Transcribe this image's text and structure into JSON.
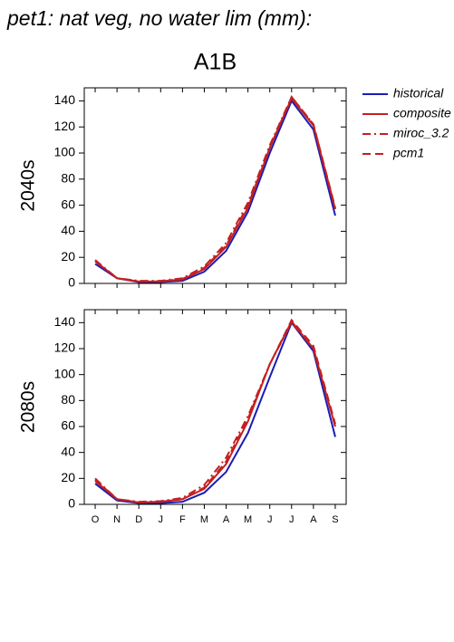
{
  "title": "pet1: nat veg, no water lim (mm):",
  "chart_data": [
    {
      "type": "line",
      "title": "A1B",
      "y_label": "2040s",
      "categories": [
        "O",
        "N",
        "D",
        "J",
        "F",
        "M",
        "A",
        "M",
        "J",
        "J",
        "A",
        "S"
      ],
      "show_x_labels": false,
      "ylim": [
        0,
        150
      ],
      "yticks": [
        0,
        20,
        40,
        60,
        80,
        100,
        120,
        140
      ],
      "grid": false,
      "legend": "right",
      "series": [
        {
          "name": "historical",
          "color": "#1c1cb4",
          "dash": "solid",
          "values": [
            15,
            4,
            1,
            1,
            2,
            9,
            25,
            55,
            100,
            140,
            118,
            52
          ]
        },
        {
          "name": "composite",
          "color": "#c42020",
          "dash": "solid",
          "values": [
            17,
            4,
            1.5,
            1.5,
            3,
            11,
            28,
            58,
            104,
            142,
            121,
            57
          ]
        },
        {
          "name": "miroc_3.2",
          "color": "#c42020",
          "dash": "dashdot",
          "values": [
            18,
            4,
            2,
            2,
            4,
            13,
            31,
            62,
            106,
            143,
            122,
            57
          ]
        },
        {
          "name": "pcm1",
          "color": "#c42020",
          "dash": "dashed",
          "values": [
            17,
            4,
            1.5,
            1.5,
            3.5,
            12,
            29,
            60,
            104,
            143,
            122,
            58
          ]
        }
      ]
    },
    {
      "type": "line",
      "y_label": "2080s",
      "categories": [
        "O",
        "N",
        "D",
        "J",
        "F",
        "M",
        "A",
        "M",
        "J",
        "J",
        "A",
        "S"
      ],
      "show_x_labels": true,
      "ylim": [
        0,
        150
      ],
      "yticks": [
        0,
        20,
        40,
        60,
        80,
        100,
        120,
        140
      ],
      "grid": false,
      "series": [
        {
          "color": "#1c1cb4",
          "dash": "solid",
          "values": [
            16,
            3,
            1,
            1,
            2,
            9,
            25,
            55,
            98,
            140,
            118,
            52
          ]
        },
        {
          "color": "#c42020",
          "dash": "solid",
          "values": [
            18,
            4,
            1.5,
            2,
            4,
            12,
            31,
            64,
            108,
            141,
            120,
            60
          ]
        },
        {
          "color": "#c42020",
          "dash": "dashdot",
          "values": [
            20,
            4,
            2,
            2.5,
            5,
            15,
            36,
            68,
            108,
            140,
            120,
            60
          ]
        },
        {
          "color": "#c42020",
          "dash": "dashed",
          "values": [
            19,
            4,
            1.5,
            2,
            4,
            13,
            33,
            66,
            108,
            142,
            122,
            62
          ]
        }
      ]
    }
  ]
}
